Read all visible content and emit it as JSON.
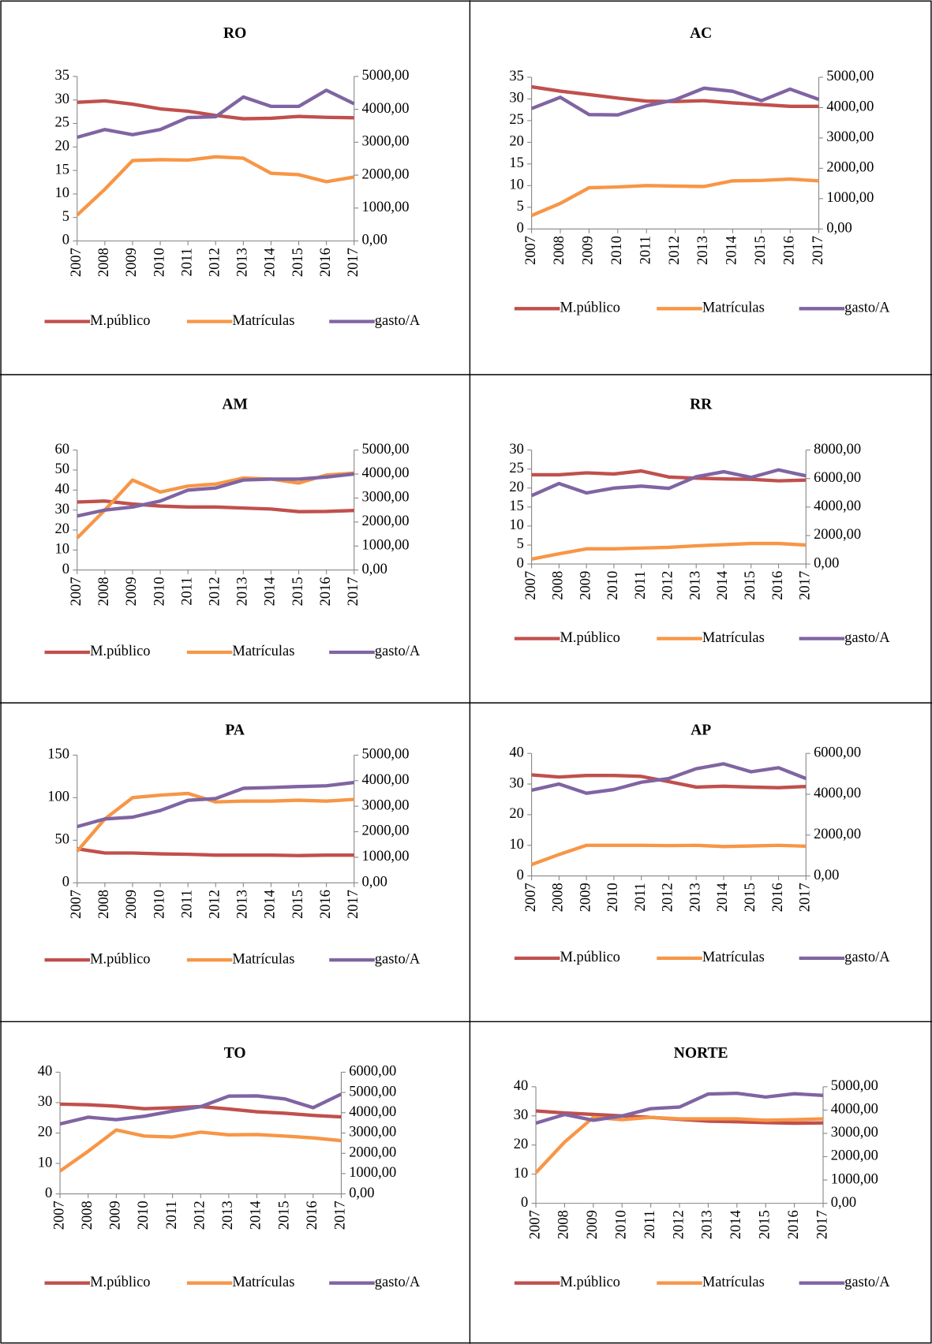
{
  "chart_data": [
    {
      "type": "line",
      "title": "RO",
      "categories": [
        "2007",
        "2008",
        "2009",
        "2010",
        "2011",
        "2012",
        "2013",
        "2014",
        "2015",
        "2016",
        "2017"
      ],
      "series": [
        {
          "name": "M.público",
          "color": "#c0504d",
          "values": [
            29.5,
            29.8,
            29.1,
            28.1,
            27.6,
            26.7,
            26.0,
            26.1,
            26.5,
            26.3,
            26.2
          ]
        },
        {
          "name": "Matrículas",
          "color": "#f79646",
          "values": [
            5.5,
            11,
            17.1,
            17.3,
            17.2,
            17.9,
            17.6,
            14.4,
            14.1,
            12.6,
            13.6
          ]
        },
        {
          "name": "gasto/A",
          "color": "#8064a2",
          "axis": "y2",
          "values": [
            3150,
            3385,
            3230,
            3385,
            3750,
            3775,
            4375,
            4090,
            4090,
            4580,
            4170
          ]
        }
      ],
      "ylim": [
        0,
        35
      ],
      "yticks": [
        0,
        5,
        10,
        15,
        20,
        25,
        30,
        35
      ],
      "y2lim": [
        0,
        5000
      ],
      "y2ticks": [
        {
          "value": 0,
          "label": "0,00"
        },
        {
          "value": 1000,
          "label": "1000,00"
        },
        {
          "value": 2000,
          "label": "2000,00"
        },
        {
          "value": 3000,
          "label": "3000,00"
        },
        {
          "value": 4000,
          "label": "4000,00"
        },
        {
          "value": 5000,
          "label": "5000,00"
        }
      ],
      "legend": "bottom",
      "grid": false
    },
    {
      "type": "line",
      "title": "AC",
      "categories": [
        "2007",
        "2008",
        "2009",
        "2010",
        "2011",
        "2012",
        "2013",
        "2014",
        "2015",
        "2016",
        "2017"
      ],
      "series": [
        {
          "name": "M.público",
          "color": "#c0504d",
          "values": [
            32.8,
            31.8,
            31.0,
            30.2,
            29.5,
            29.4,
            29.6,
            29.1,
            28.7,
            28.3,
            28.3
          ]
        },
        {
          "name": "Matrículas",
          "color": "#f79646",
          "values": [
            3.1,
            5.9,
            9.5,
            9.7,
            10.0,
            9.9,
            9.8,
            11.1,
            11.2,
            11.5,
            11.1
          ]
        },
        {
          "name": "gasto/A",
          "color": "#8064a2",
          "axis": "y2",
          "values": [
            3970,
            4340,
            3770,
            3760,
            4060,
            4260,
            4640,
            4540,
            4230,
            4610,
            4270
          ]
        }
      ],
      "ylim": [
        0,
        35
      ],
      "yticks": [
        0,
        5,
        10,
        15,
        20,
        25,
        30,
        35
      ],
      "y2lim": [
        0,
        5000
      ],
      "y2ticks": [
        {
          "value": 0,
          "label": "0,00"
        },
        {
          "value": 1000,
          "label": "1000,00"
        },
        {
          "value": 2000,
          "label": "2000,00"
        },
        {
          "value": 3000,
          "label": "3000,00"
        },
        {
          "value": 4000,
          "label": "4000,00"
        },
        {
          "value": 5000,
          "label": "5000,00"
        }
      ],
      "legend": "bottom",
      "grid": false
    },
    {
      "type": "line",
      "title": "AM",
      "categories": [
        "2007",
        "2008",
        "2009",
        "2010",
        "2011",
        "2012",
        "2013",
        "2014",
        "2015",
        "2016",
        "2017"
      ],
      "series": [
        {
          "name": "M.público",
          "color": "#c0504d",
          "values": [
            34,
            34.5,
            33,
            32,
            31.5,
            31.5,
            31,
            30.5,
            29.2,
            29.3,
            29.8
          ]
        },
        {
          "name": "Matrículas",
          "color": "#f79646",
          "values": [
            16,
            30,
            45,
            39,
            42,
            43,
            46,
            45.5,
            43.5,
            47.5,
            48.5
          ]
        },
        {
          "name": "gasto/A",
          "color": "#8064a2",
          "axis": "y2",
          "values": [
            2250,
            2500,
            2625,
            2875,
            3330,
            3420,
            3750,
            3790,
            3790,
            3875,
            4000
          ]
        }
      ],
      "ylim": [
        0,
        60
      ],
      "yticks": [
        0,
        10,
        20,
        30,
        40,
        50,
        60
      ],
      "y2lim": [
        0,
        5000
      ],
      "y2ticks": [
        {
          "value": 0,
          "label": "0,00"
        },
        {
          "value": 1000,
          "label": "1000,00"
        },
        {
          "value": 2000,
          "label": "2000,00"
        },
        {
          "value": 3000,
          "label": "3000,00"
        },
        {
          "value": 4000,
          "label": "4000,00"
        },
        {
          "value": 5000,
          "label": "5000,00"
        }
      ],
      "legend": "bottom",
      "grid": false
    },
    {
      "type": "line",
      "title": "RR",
      "categories": [
        "2007",
        "2008",
        "2009",
        "2010",
        "2011",
        "2012",
        "2013",
        "2014",
        "2015",
        "2016",
        "2017"
      ],
      "series": [
        {
          "name": "M.público",
          "color": "#c0504d",
          "values": [
            23.5,
            23.5,
            24,
            23.7,
            24.5,
            22.9,
            22.6,
            22.4,
            22.3,
            21.9,
            22.1
          ]
        },
        {
          "name": "Matrículas",
          "color": "#f79646",
          "values": [
            1.3,
            2.7,
            4,
            4,
            4.2,
            4.4,
            4.8,
            5.1,
            5.4,
            5.4,
            5
          ]
        },
        {
          "name": "gasto/A",
          "color": "#8064a2",
          "axis": "y2",
          "values": [
            4800,
            5650,
            4990,
            5330,
            5470,
            5310,
            6130,
            6480,
            6080,
            6610,
            6190
          ]
        }
      ],
      "ylim": [
        0,
        30
      ],
      "yticks": [
        0,
        5,
        10,
        15,
        20,
        25,
        30
      ],
      "y2lim": [
        0,
        8000
      ],
      "y2ticks": [
        {
          "value": 0,
          "label": "0,00"
        },
        {
          "value": 2000,
          "label": "2000,00"
        },
        {
          "value": 4000,
          "label": "4000,00"
        },
        {
          "value": 6000,
          "label": "6000,00"
        },
        {
          "value": 8000,
          "label": "8000,00"
        }
      ],
      "legend": "bottom",
      "grid": false
    },
    {
      "type": "line",
      "title": "PA",
      "categories": [
        "2007",
        "2008",
        "2009",
        "2010",
        "2011",
        "2012",
        "2013",
        "2014",
        "2015",
        "2016",
        "2017"
      ],
      "series": [
        {
          "name": "M.público",
          "color": "#c0504d",
          "values": [
            40,
            35,
            35,
            34,
            33.5,
            32.5,
            32.5,
            32.5,
            32,
            32.5,
            32.5
          ]
        },
        {
          "name": "Matrículas",
          "color": "#f79646",
          "values": [
            37,
            75,
            100,
            103,
            105,
            95,
            96,
            96,
            97,
            96,
            98
          ]
        },
        {
          "name": "gasto/A",
          "color": "#8064a2",
          "axis": "y2",
          "values": [
            2200,
            2500,
            2570,
            2830,
            3230,
            3300,
            3700,
            3730,
            3770,
            3800,
            3930
          ]
        }
      ],
      "ylim": [
        0,
        150
      ],
      "yticks": [
        0,
        50,
        100,
        150
      ],
      "y2lim": [
        0,
        5000
      ],
      "y2ticks": [
        {
          "value": 0,
          "label": "0,00"
        },
        {
          "value": 1000,
          "label": "1000,00"
        },
        {
          "value": 2000,
          "label": "2000,00"
        },
        {
          "value": 3000,
          "label": "3000,00"
        },
        {
          "value": 4000,
          "label": "4000,00"
        },
        {
          "value": 5000,
          "label": "5000,00"
        }
      ],
      "legend": "bottom",
      "grid": false
    },
    {
      "type": "line",
      "title": "AP",
      "categories": [
        "2007",
        "2008",
        "2009",
        "2010",
        "2011",
        "2012",
        "2013",
        "2014",
        "2015",
        "2016",
        "2017"
      ],
      "series": [
        {
          "name": "M.público",
          "color": "#c0504d",
          "values": [
            33,
            32.3,
            32.8,
            32.8,
            32.5,
            30.8,
            29,
            29.3,
            29,
            28.8,
            29.2
          ]
        },
        {
          "name": "Matrículas",
          "color": "#f79646",
          "values": [
            3.7,
            7,
            10,
            10,
            10,
            9.9,
            10,
            9.6,
            9.8,
            10,
            9.7
          ]
        },
        {
          "name": "gasto/A",
          "color": "#8064a2",
          "axis": "y2",
          "values": [
            4200,
            4500,
            4050,
            4230,
            4590,
            4770,
            5250,
            5490,
            5100,
            5300,
            4770
          ]
        }
      ],
      "ylim": [
        0,
        40
      ],
      "yticks": [
        0,
        10,
        20,
        30,
        40
      ],
      "y2lim": [
        0,
        6000
      ],
      "y2ticks": [
        {
          "value": 0,
          "label": "0,00"
        },
        {
          "value": 2000,
          "label": "2000,00"
        },
        {
          "value": 4000,
          "label": "4000,00"
        },
        {
          "value": 6000,
          "label": "6000,00"
        }
      ],
      "legend": "bottom",
      "grid": false
    },
    {
      "type": "line",
      "title": "TO",
      "categories": [
        "2007",
        "2008",
        "2009",
        "2010",
        "2011",
        "2012",
        "2013",
        "2014",
        "2015",
        "2016",
        "2017"
      ],
      "series": [
        {
          "name": "M.público",
          "color": "#c0504d",
          "values": [
            29.5,
            29.3,
            28.8,
            28,
            28.3,
            28.7,
            27.9,
            27,
            26.5,
            25.8,
            25.3
          ]
        },
        {
          "name": "Matrículas",
          "color": "#f79646",
          "values": [
            7.5,
            14,
            21,
            19,
            18.7,
            20.3,
            19.4,
            19.5,
            19,
            18.4,
            17.5
          ]
        },
        {
          "name": "gasto/A",
          "color": "#8064a2",
          "axis": "y2",
          "values": [
            3450,
            3780,
            3660,
            3830,
            4080,
            4300,
            4820,
            4830,
            4680,
            4250,
            4920
          ]
        }
      ],
      "ylim": [
        0,
        40
      ],
      "yticks": [
        0,
        10,
        20,
        30,
        40
      ],
      "y2lim": [
        0,
        6000
      ],
      "y2ticks": [
        {
          "value": 0,
          "label": "0,00"
        },
        {
          "value": 1000,
          "label": "1000,00"
        },
        {
          "value": 2000,
          "label": "2000,00"
        },
        {
          "value": 3000,
          "label": "3000,00"
        },
        {
          "value": 4000,
          "label": "4000,00"
        },
        {
          "value": 5000,
          "label": "5000,00"
        },
        {
          "value": 6000,
          "label": "6000,00"
        }
      ],
      "legend": "bottom",
      "grid": false
    },
    {
      "type": "line",
      "title": "NORTE",
      "categories": [
        "2007",
        "2008",
        "2009",
        "2010",
        "2011",
        "2012",
        "2013",
        "2014",
        "2015",
        "2016",
        "2017"
      ],
      "series": [
        {
          "name": "M.público",
          "color": "#c0504d",
          "values": [
            31.7,
            31,
            30.5,
            30,
            29.5,
            28.8,
            28.2,
            28,
            27.7,
            27.5,
            27.6
          ]
        },
        {
          "name": "Matrículas",
          "color": "#f79646",
          "values": [
            10.5,
            21,
            29.5,
            28.7,
            29.5,
            29,
            29,
            29,
            28.5,
            28.7,
            29
          ]
        },
        {
          "name": "gasto/A",
          "color": "#8064a2",
          "axis": "y2",
          "values": [
            3440,
            3810,
            3560,
            3750,
            4060,
            4130,
            4690,
            4720,
            4560,
            4700,
            4630
          ]
        }
      ],
      "ylim": [
        0,
        40
      ],
      "yticks": [
        0,
        10,
        20,
        30,
        40
      ],
      "y2lim": [
        0,
        5000
      ],
      "y2ticks": [
        {
          "value": 0,
          "label": "0,00"
        },
        {
          "value": 1000,
          "label": "1000,00"
        },
        {
          "value": 2000,
          "label": "2000,00"
        },
        {
          "value": 3000,
          "label": "3000,00"
        },
        {
          "value": 4000,
          "label": "4000,00"
        },
        {
          "value": 5000,
          "label": "5000,00"
        }
      ],
      "legend": "bottom",
      "grid": false
    }
  ]
}
